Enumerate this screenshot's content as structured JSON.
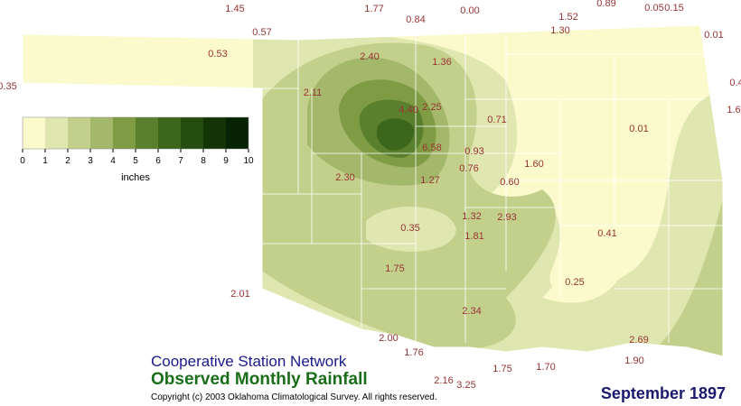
{
  "header": {
    "network": "Cooperative Station Network",
    "title": "Observed Monthly Rainfall",
    "copyright": "Copyright (c) 2003 Oklahoma Climatological Survey. All rights reserved.",
    "period": "September 1897"
  },
  "legend": {
    "ticks": [
      "0",
      "1",
      "2",
      "3",
      "4",
      "5",
      "6",
      "7",
      "8",
      "9",
      "10"
    ],
    "unit": "inches",
    "colors": [
      "#fafacc",
      "#e0e6b0",
      "#c3d08c",
      "#a3b86a",
      "#7f9c45",
      "#5a802e",
      "#3d661d",
      "#264d10",
      "#133506",
      "#082204"
    ]
  },
  "stations": [
    "1.45",
    "1.77",
    "0.84",
    "0.00",
    "1.52",
    "0.89",
    "0.05",
    "0.15",
    "0.57",
    "1.30",
    "0.01",
    "0.53",
    "2.40",
    "1.36",
    "0.35",
    "0.4",
    "2.11",
    "4.40",
    "2.25",
    "0.71",
    "1.6",
    "0.01",
    "6.58",
    "0.93",
    "0.76",
    "1.60",
    "2.30",
    "1.27",
    "0.60",
    "1.32",
    "2.93",
    "0.35",
    "0.41",
    "1.81",
    "1.75",
    "0.25",
    "2.01",
    "2.34",
    "2.00",
    "2.69",
    "1.76",
    "1.90",
    "1.75",
    "1.70",
    "2.16",
    "3.25"
  ]
}
